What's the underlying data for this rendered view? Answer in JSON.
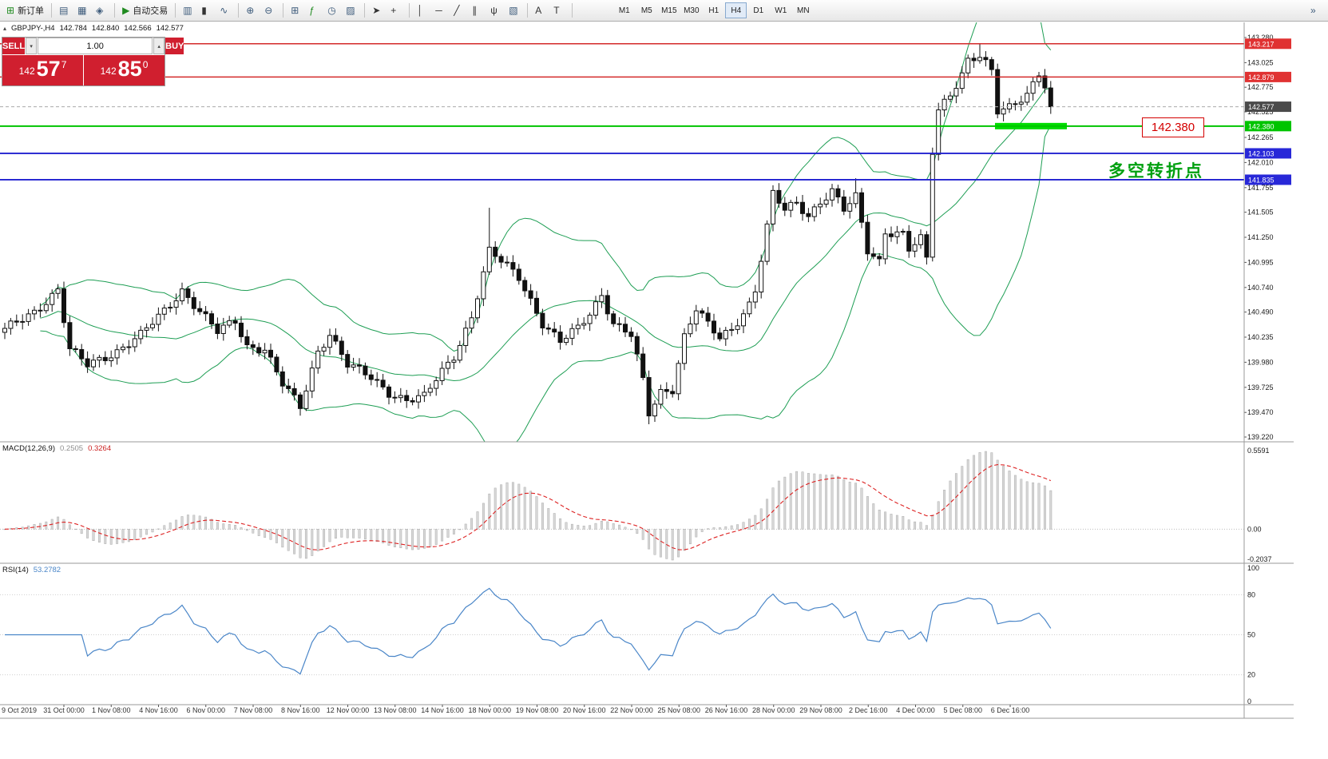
{
  "toolbar": {
    "new_order_label": "新订单",
    "auto_trading_label": "自动交易",
    "icons": [
      {
        "name": "new-order-icon",
        "glyph": "⊞"
      },
      {
        "name": "market-watch-icon",
        "glyph": "▤"
      },
      {
        "name": "data-window-icon",
        "glyph": "▦"
      },
      {
        "name": "navigator-icon",
        "glyph": "◈"
      },
      {
        "name": "auto-trading-icon",
        "glyph": "▶"
      },
      {
        "name": "bar-chart-icon",
        "glyph": "▥"
      },
      {
        "name": "candlestick-chart-icon",
        "glyph": "▮"
      },
      {
        "name": "line-chart-icon",
        "glyph": "∿"
      },
      {
        "name": "zoom-in-icon",
        "glyph": "⊕"
      },
      {
        "name": "zoom-out-icon",
        "glyph": "⊖"
      },
      {
        "name": "tile-windows-icon",
        "glyph": "⊞"
      },
      {
        "name": "indicators-icon",
        "glyph": "ƒ"
      },
      {
        "name": "periods-icon",
        "glyph": "◷"
      },
      {
        "name": "templates-icon",
        "glyph": "▨"
      },
      {
        "name": "cursor-icon",
        "glyph": "➤"
      },
      {
        "name": "crosshair-icon",
        "glyph": "+"
      },
      {
        "name": "vertical-line-icon",
        "glyph": "│"
      },
      {
        "name": "horizontal-line-icon",
        "glyph": "─"
      },
      {
        "name": "trendline-icon",
        "glyph": "╱"
      },
      {
        "name": "channel-icon",
        "glyph": "∥"
      },
      {
        "name": "fibonacci-icon",
        "glyph": "ψ"
      },
      {
        "name": "shapes-icon",
        "glyph": "▧"
      },
      {
        "name": "text-icon",
        "glyph": "A"
      },
      {
        "name": "label-icon",
        "glyph": "T"
      },
      {
        "name": "chart-shift-icon",
        "glyph": "»"
      }
    ],
    "timeframes": [
      "M1",
      "M5",
      "M15",
      "M30",
      "H1",
      "H4",
      "D1",
      "W1",
      "MN"
    ],
    "active_timeframe": "H4"
  },
  "quote": {
    "collapse_glyph": "▴",
    "symbol": "GBPJPY-,H4",
    "open": "142.784",
    "high": "142.840",
    "low": "142.566",
    "close": "142.577"
  },
  "trade_panel": {
    "sell_label": "SELL",
    "buy_label": "BUY",
    "volume": "1.00",
    "spinner_down": "▾",
    "spinner_up": "▴",
    "sell_price": {
      "prefix": "142",
      "big": "57",
      "pip": "7"
    },
    "buy_price": {
      "prefix": "142",
      "big": "85",
      "pip": "0"
    }
  },
  "annotations": {
    "price_box": "142.380",
    "turning_point": "多空转折点"
  },
  "indicators": {
    "macd": {
      "name": "MACD(12,26,9)",
      "main_value": "0.2505",
      "signal_value": "0.3264"
    },
    "rsi": {
      "name": "RSI(14)",
      "value": "53.2782"
    }
  },
  "colors": {
    "trade_red": "#d01f2f",
    "level_red": "#d42a2a",
    "level_blue": "#2020d0",
    "level_green": "#00c400",
    "highlight_green": "#00dd00",
    "bollinger_green": "#1e9e54",
    "macd_signal_red": "#dd2222",
    "rsi_blue": "#4a86c8",
    "annotation_green": "#00a010"
  },
  "time_axis": [
    "9 Oct 2019",
    "31 Oct 00:00",
    "1 Nov 08:00",
    "4 Nov 16:00",
    "6 Nov 00:00",
    "7 Nov 08:00",
    "8 Nov 16:00",
    "12 Nov 00:00",
    "13 Nov 08:00",
    "14 Nov 16:00",
    "18 Nov 00:00",
    "19 Nov 08:00",
    "20 Nov 16:00",
    "22 Nov 00:00",
    "25 Nov 08:00",
    "26 Nov 16:00",
    "28 Nov 00:00",
    "29 Nov 08:00",
    "2 Dec 16:00",
    "4 Dec 00:00",
    "5 Dec 08:00",
    "6 Dec 16:00"
  ],
  "chart_data": [
    {
      "type": "candlestick",
      "symbol": "GBPJPY-",
      "timeframe": "H4",
      "ylim": [
        139.22,
        143.28
      ],
      "y_axis_labels": [
        "143.280",
        "143.025",
        "142.775",
        "142.525",
        "142.265",
        "142.010",
        "141.755",
        "141.505",
        "141.250",
        "140.995",
        "140.740",
        "140.490",
        "140.235",
        "139.980",
        "139.725",
        "139.470",
        "139.220"
      ],
      "price_tags": [
        {
          "value": "143.217",
          "color": "#e03232"
        },
        {
          "value": "142.879",
          "color": "#e03232"
        },
        {
          "value": "142.577",
          "color": "#4a4a4a"
        },
        {
          "value": "142.380",
          "color": "#00c400"
        },
        {
          "value": "142.103",
          "color": "#2828d8"
        },
        {
          "value": "141.835",
          "color": "#2828d8"
        }
      ],
      "horizontal_lines": [
        {
          "price": 143.217,
          "color": "#d42a2a",
          "width": 1.4
        },
        {
          "price": 142.879,
          "color": "#d42a2a",
          "width": 1.4
        },
        {
          "price": 142.577,
          "color": "#aaaaaa",
          "width": 1,
          "dash": "4,3"
        },
        {
          "price": 142.38,
          "color": "#00c400",
          "width": 2
        },
        {
          "price": 142.103,
          "color": "#2020d0",
          "width": 1.8
        },
        {
          "price": 141.835,
          "color": "#2020d0",
          "width": 1.8
        }
      ],
      "highlight_bar": {
        "price": 142.38,
        "x_from": 1246,
        "x_to": 1336,
        "color": "#00dd00",
        "thickness": 8
      },
      "bollinger": {
        "period": 20,
        "deviation": 2,
        "color": "#1e9e54"
      },
      "candle_count": 178,
      "price_waypoints": [
        [
          0,
          140.3
        ],
        [
          5,
          140.5
        ],
        [
          9,
          140.72
        ],
        [
          11,
          140.1
        ],
        [
          14,
          139.95
        ],
        [
          19,
          140.1
        ],
        [
          23,
          140.25
        ],
        [
          27,
          140.5
        ],
        [
          30,
          140.72
        ],
        [
          33,
          140.5
        ],
        [
          36,
          140.28
        ],
        [
          39,
          140.4
        ],
        [
          41,
          140.15
        ],
        [
          44,
          140.12
        ],
        [
          47,
          139.75
        ],
        [
          50,
          139.52
        ],
        [
          53,
          140.1
        ],
        [
          55,
          140.28
        ],
        [
          58,
          139.95
        ],
        [
          62,
          139.82
        ],
        [
          65,
          139.68
        ],
        [
          68,
          139.6
        ],
        [
          71,
          139.62
        ],
        [
          73,
          139.8
        ],
        [
          76,
          140.05
        ],
        [
          79,
          140.45
        ],
        [
          82,
          141.1
        ],
        [
          84,
          141.0
        ],
        [
          87,
          140.85
        ],
        [
          89,
          140.62
        ],
        [
          91,
          140.38
        ],
        [
          94,
          140.18
        ],
        [
          97,
          140.32
        ],
        [
          99,
          140.48
        ],
        [
          101,
          140.68
        ],
        [
          103,
          140.38
        ],
        [
          106,
          140.25
        ],
        [
          108,
          139.78
        ],
        [
          109,
          139.45
        ],
        [
          111,
          139.68
        ],
        [
          113,
          139.72
        ],
        [
          115,
          140.25
        ],
        [
          117,
          140.52
        ],
        [
          119,
          140.35
        ],
        [
          121,
          140.22
        ],
        [
          123,
          140.32
        ],
        [
          126,
          140.58
        ],
        [
          127,
          140.72
        ],
        [
          129,
          141.35
        ],
        [
          130,
          141.68
        ],
        [
          132,
          141.52
        ],
        [
          134,
          141.6
        ],
        [
          136,
          141.48
        ],
        [
          138,
          141.62
        ],
        [
          140,
          141.72
        ],
        [
          142,
          141.52
        ],
        [
          144,
          141.65
        ],
        [
          146,
          141.12
        ],
        [
          148,
          141.02
        ],
        [
          149,
          141.32
        ],
        [
          152,
          141.28
        ],
        [
          153,
          141.12
        ],
        [
          155,
          141.22
        ],
        [
          156,
          141.02
        ],
        [
          157,
          142.12
        ],
        [
          158,
          142.55
        ],
        [
          160,
          142.72
        ],
        [
          162,
          142.92
        ],
        [
          163,
          143.05
        ],
        [
          165,
          143.08
        ],
        [
          167,
          142.92
        ],
        [
          168,
          142.52
        ],
        [
          170,
          142.58
        ],
        [
          172,
          142.68
        ],
        [
          173,
          142.72
        ],
        [
          175,
          142.92
        ],
        [
          176,
          142.78
        ],
        [
          177,
          142.577
        ]
      ],
      "wick_overrides": {
        "82": {
          "high": 141.55
        },
        "109": {
          "low": 139.35
        },
        "144": {
          "high": 141.85
        },
        "165": {
          "high": 143.22
        }
      }
    },
    {
      "type": "macd",
      "title": "MACD(12,26,9)",
      "params": [
        12,
        26,
        9
      ],
      "values_shown": [
        "0.2505",
        "0.3264"
      ],
      "y_labels": {
        "top": "0.5591",
        "zero": "0.00",
        "bottom": "-0.2037"
      },
      "histogram_color": "#d8d8d8",
      "histogram_stroke": "#ababab",
      "signal_color": "#dd2222"
    },
    {
      "type": "rsi",
      "title": "RSI(14)",
      "period": 14,
      "value_shown": "53.2782",
      "levels": [
        100,
        80,
        50,
        20,
        0
      ],
      "line_color": "#4a86c8"
    }
  ]
}
